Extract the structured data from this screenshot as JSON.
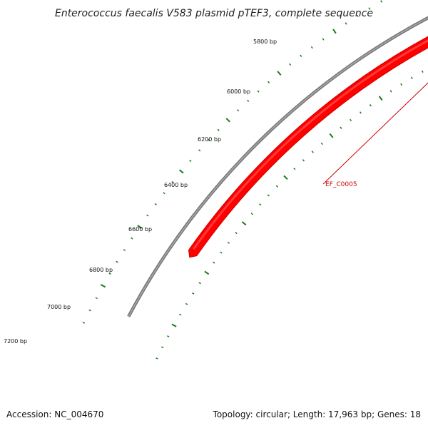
{
  "title": "Enterococcus faecalis V583 plasmid pTEF3, complete sequence",
  "tick_labels": [
    "5800 bp",
    "6000 bp",
    "6200 bp",
    "6400 bp",
    "6600 bp",
    "6800 bp",
    "7000 bp",
    "7200 bp"
  ],
  "gene": {
    "label": "EF_C0005",
    "strand": "forward"
  },
  "footer": {
    "accession": "Accession: NC_004670",
    "summary": "Topology: circular; Length: 17,963 bp; Genes: 18"
  },
  "colors": {
    "backbone": "#888888",
    "gene": "#ff0000",
    "gene_dark": "#cc0000",
    "ticks": "#1a7a1a"
  }
}
